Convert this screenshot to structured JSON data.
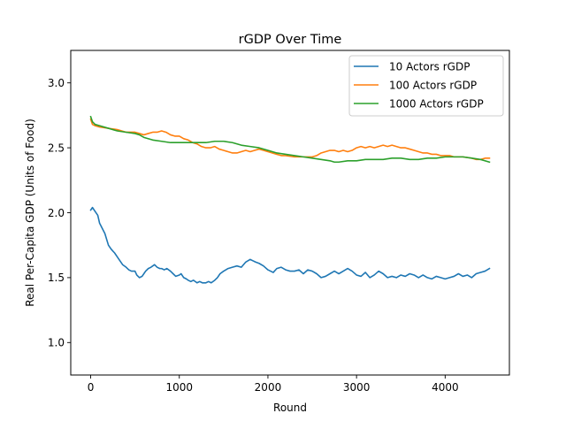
{
  "chart_data": {
    "type": "line",
    "title": "rGDP Over Time",
    "xlabel": "Round",
    "ylabel": "Real Per-Capita GDP (Units of Food)",
    "xlim": [
      -225,
      4725
    ],
    "ylim": [
      0.75,
      3.25
    ],
    "xticks": [
      0,
      1000,
      2000,
      3000,
      4000
    ],
    "xtick_labels": [
      "0",
      "1000",
      "2000",
      "3000",
      "4000"
    ],
    "yticks": [
      1.0,
      1.5,
      2.0,
      2.5,
      3.0
    ],
    "ytick_labels": [
      "1.0",
      "1.5",
      "2.0",
      "2.5",
      "3.0"
    ],
    "grid": false,
    "legend_position": "top-right",
    "series": [
      {
        "name": "10 Actors rGDP",
        "color": "#1f77b4",
        "points": [
          [
            0,
            2.02
          ],
          [
            20,
            2.04
          ],
          [
            50,
            2.01
          ],
          [
            80,
            1.98
          ],
          [
            100,
            1.92
          ],
          [
            130,
            1.88
          ],
          [
            160,
            1.84
          ],
          [
            200,
            1.75
          ],
          [
            230,
            1.72
          ],
          [
            270,
            1.69
          ],
          [
            300,
            1.66
          ],
          [
            330,
            1.63
          ],
          [
            360,
            1.6
          ],
          [
            400,
            1.58
          ],
          [
            430,
            1.56
          ],
          [
            460,
            1.55
          ],
          [
            500,
            1.55
          ],
          [
            520,
            1.52
          ],
          [
            550,
            1.5
          ],
          [
            580,
            1.51
          ],
          [
            600,
            1.53
          ],
          [
            620,
            1.55
          ],
          [
            650,
            1.57
          ],
          [
            680,
            1.58
          ],
          [
            700,
            1.59
          ],
          [
            720,
            1.6
          ],
          [
            750,
            1.58
          ],
          [
            780,
            1.57
          ],
          [
            800,
            1.57
          ],
          [
            830,
            1.56
          ],
          [
            860,
            1.57
          ],
          [
            900,
            1.55
          ],
          [
            930,
            1.53
          ],
          [
            960,
            1.51
          ],
          [
            1000,
            1.52
          ],
          [
            1020,
            1.53
          ],
          [
            1050,
            1.5
          ],
          [
            1080,
            1.49
          ],
          [
            1100,
            1.48
          ],
          [
            1130,
            1.47
          ],
          [
            1160,
            1.48
          ],
          [
            1200,
            1.46
          ],
          [
            1230,
            1.47
          ],
          [
            1260,
            1.46
          ],
          [
            1300,
            1.46
          ],
          [
            1330,
            1.47
          ],
          [
            1360,
            1.46
          ],
          [
            1400,
            1.48
          ],
          [
            1430,
            1.5
          ],
          [
            1460,
            1.53
          ],
          [
            1500,
            1.55
          ],
          [
            1550,
            1.57
          ],
          [
            1600,
            1.58
          ],
          [
            1650,
            1.59
          ],
          [
            1700,
            1.58
          ],
          [
            1750,
            1.62
          ],
          [
            1800,
            1.64
          ],
          [
            1830,
            1.63
          ],
          [
            1860,
            1.62
          ],
          [
            1900,
            1.61
          ],
          [
            1950,
            1.59
          ],
          [
            2000,
            1.56
          ],
          [
            2030,
            1.55
          ],
          [
            2060,
            1.54
          ],
          [
            2100,
            1.57
          ],
          [
            2150,
            1.58
          ],
          [
            2200,
            1.56
          ],
          [
            2250,
            1.55
          ],
          [
            2300,
            1.55
          ],
          [
            2350,
            1.56
          ],
          [
            2400,
            1.53
          ],
          [
            2450,
            1.56
          ],
          [
            2500,
            1.55
          ],
          [
            2550,
            1.53
          ],
          [
            2600,
            1.5
          ],
          [
            2650,
            1.51
          ],
          [
            2700,
            1.53
          ],
          [
            2750,
            1.55
          ],
          [
            2800,
            1.53
          ],
          [
            2850,
            1.55
          ],
          [
            2900,
            1.57
          ],
          [
            2950,
            1.55
          ],
          [
            3000,
            1.52
          ],
          [
            3050,
            1.51
          ],
          [
            3100,
            1.54
          ],
          [
            3150,
            1.5
          ],
          [
            3200,
            1.52
          ],
          [
            3250,
            1.55
          ],
          [
            3300,
            1.53
          ],
          [
            3350,
            1.5
          ],
          [
            3400,
            1.51
          ],
          [
            3450,
            1.5
          ],
          [
            3500,
            1.52
          ],
          [
            3550,
            1.51
          ],
          [
            3600,
            1.53
          ],
          [
            3650,
            1.52
          ],
          [
            3700,
            1.5
          ],
          [
            3750,
            1.52
          ],
          [
            3800,
            1.5
          ],
          [
            3850,
            1.49
          ],
          [
            3900,
            1.51
          ],
          [
            3950,
            1.5
          ],
          [
            4000,
            1.49
          ],
          [
            4050,
            1.5
          ],
          [
            4100,
            1.51
          ],
          [
            4150,
            1.53
          ],
          [
            4200,
            1.51
          ],
          [
            4250,
            1.52
          ],
          [
            4300,
            1.5
          ],
          [
            4350,
            1.53
          ],
          [
            4400,
            1.54
          ],
          [
            4450,
            1.55
          ],
          [
            4500,
            1.57
          ]
        ]
      },
      {
        "name": "100 Actors rGDP",
        "color": "#ff7f0e",
        "points": [
          [
            0,
            2.72
          ],
          [
            20,
            2.68
          ],
          [
            50,
            2.67
          ],
          [
            100,
            2.66
          ],
          [
            200,
            2.65
          ],
          [
            300,
            2.64
          ],
          [
            400,
            2.62
          ],
          [
            500,
            2.62
          ],
          [
            550,
            2.61
          ],
          [
            600,
            2.6
          ],
          [
            650,
            2.61
          ],
          [
            700,
            2.62
          ],
          [
            750,
            2.62
          ],
          [
            800,
            2.63
          ],
          [
            850,
            2.62
          ],
          [
            900,
            2.6
          ],
          [
            950,
            2.59
          ],
          [
            1000,
            2.59
          ],
          [
            1050,
            2.57
          ],
          [
            1100,
            2.56
          ],
          [
            1150,
            2.54
          ],
          [
            1200,
            2.53
          ],
          [
            1250,
            2.51
          ],
          [
            1300,
            2.5
          ],
          [
            1350,
            2.5
          ],
          [
            1400,
            2.51
          ],
          [
            1450,
            2.49
          ],
          [
            1500,
            2.48
          ],
          [
            1550,
            2.47
          ],
          [
            1600,
            2.46
          ],
          [
            1650,
            2.46
          ],
          [
            1700,
            2.47
          ],
          [
            1750,
            2.48
          ],
          [
            1800,
            2.47
          ],
          [
            1850,
            2.48
          ],
          [
            1900,
            2.49
          ],
          [
            1950,
            2.48
          ],
          [
            2000,
            2.47
          ],
          [
            2050,
            2.46
          ],
          [
            2100,
            2.45
          ],
          [
            2150,
            2.44
          ],
          [
            2200,
            2.44
          ],
          [
            2300,
            2.43
          ],
          [
            2400,
            2.43
          ],
          [
            2500,
            2.43
          ],
          [
            2550,
            2.44
          ],
          [
            2600,
            2.46
          ],
          [
            2650,
            2.47
          ],
          [
            2700,
            2.48
          ],
          [
            2750,
            2.48
          ],
          [
            2800,
            2.47
          ],
          [
            2850,
            2.48
          ],
          [
            2900,
            2.47
          ],
          [
            2950,
            2.48
          ],
          [
            3000,
            2.5
          ],
          [
            3050,
            2.51
          ],
          [
            3100,
            2.5
          ],
          [
            3150,
            2.51
          ],
          [
            3200,
            2.5
          ],
          [
            3250,
            2.51
          ],
          [
            3300,
            2.52
          ],
          [
            3350,
            2.51
          ],
          [
            3400,
            2.52
          ],
          [
            3450,
            2.51
          ],
          [
            3500,
            2.5
          ],
          [
            3550,
            2.5
          ],
          [
            3600,
            2.49
          ],
          [
            3650,
            2.48
          ],
          [
            3700,
            2.47
          ],
          [
            3750,
            2.46
          ],
          [
            3800,
            2.46
          ],
          [
            3850,
            2.45
          ],
          [
            3900,
            2.45
          ],
          [
            3950,
            2.44
          ],
          [
            4000,
            2.44
          ],
          [
            4050,
            2.44
          ],
          [
            4100,
            2.43
          ],
          [
            4200,
            2.43
          ],
          [
            4300,
            2.42
          ],
          [
            4350,
            2.41
          ],
          [
            4400,
            2.41
          ],
          [
            4450,
            2.42
          ],
          [
            4500,
            2.42
          ]
        ]
      },
      {
        "name": "1000 Actors rGDP",
        "color": "#2ca02c",
        "points": [
          [
            0,
            2.74
          ],
          [
            20,
            2.7
          ],
          [
            50,
            2.68
          ],
          [
            100,
            2.67
          ],
          [
            200,
            2.65
          ],
          [
            300,
            2.63
          ],
          [
            400,
            2.62
          ],
          [
            500,
            2.61
          ],
          [
            550,
            2.6
          ],
          [
            600,
            2.58
          ],
          [
            700,
            2.56
          ],
          [
            800,
            2.55
          ],
          [
            900,
            2.54
          ],
          [
            1000,
            2.54
          ],
          [
            1100,
            2.54
          ],
          [
            1200,
            2.54
          ],
          [
            1300,
            2.54
          ],
          [
            1400,
            2.55
          ],
          [
            1500,
            2.55
          ],
          [
            1600,
            2.54
          ],
          [
            1700,
            2.52
          ],
          [
            1800,
            2.51
          ],
          [
            1900,
            2.5
          ],
          [
            2000,
            2.48
          ],
          [
            2100,
            2.46
          ],
          [
            2200,
            2.45
          ],
          [
            2300,
            2.44
          ],
          [
            2400,
            2.43
          ],
          [
            2500,
            2.42
          ],
          [
            2600,
            2.41
          ],
          [
            2700,
            2.4
          ],
          [
            2750,
            2.39
          ],
          [
            2800,
            2.39
          ],
          [
            2900,
            2.4
          ],
          [
            3000,
            2.4
          ],
          [
            3100,
            2.41
          ],
          [
            3200,
            2.41
          ],
          [
            3300,
            2.41
          ],
          [
            3400,
            2.42
          ],
          [
            3500,
            2.42
          ],
          [
            3600,
            2.41
          ],
          [
            3700,
            2.41
          ],
          [
            3800,
            2.42
          ],
          [
            3900,
            2.42
          ],
          [
            4000,
            2.43
          ],
          [
            4100,
            2.43
          ],
          [
            4200,
            2.43
          ],
          [
            4300,
            2.42
          ],
          [
            4400,
            2.41
          ],
          [
            4500,
            2.39
          ]
        ]
      }
    ]
  }
}
